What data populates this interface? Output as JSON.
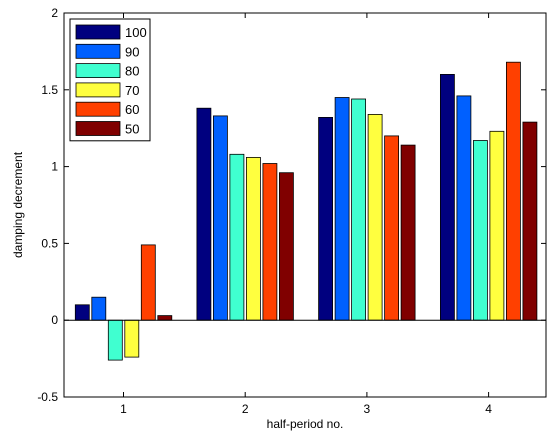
{
  "chart_data": {
    "type": "bar",
    "title": "",
    "xlabel": "half-period no.",
    "ylabel": "damping decrement",
    "categories": [
      "1",
      "2",
      "3",
      "4"
    ],
    "ylim": [
      -0.5,
      2
    ],
    "yticks": [
      "-0.5",
      "0",
      "0.5",
      "1",
      "1.5",
      "2"
    ],
    "ytick_values": [
      -0.5,
      0,
      0.5,
      1,
      1.5,
      2
    ],
    "grid": false,
    "legend_position": "top-left",
    "series": [
      {
        "name": "100",
        "color": "#00007f",
        "values": [
          0.1,
          1.38,
          1.32,
          1.6
        ]
      },
      {
        "name": "90",
        "color": "#0060ff",
        "values": [
          0.15,
          1.33,
          1.45,
          1.46
        ]
      },
      {
        "name": "80",
        "color": "#40ffd0",
        "values": [
          -0.26,
          1.08,
          1.44,
          1.17
        ]
      },
      {
        "name": "70",
        "color": "#ffff3f",
        "values": [
          -0.24,
          1.06,
          1.34,
          1.23
        ]
      },
      {
        "name": "60",
        "color": "#ff4000",
        "values": [
          0.49,
          1.02,
          1.2,
          1.68
        ]
      },
      {
        "name": "50",
        "color": "#800000",
        "values": [
          0.03,
          0.96,
          1.14,
          1.29
        ]
      }
    ]
  }
}
